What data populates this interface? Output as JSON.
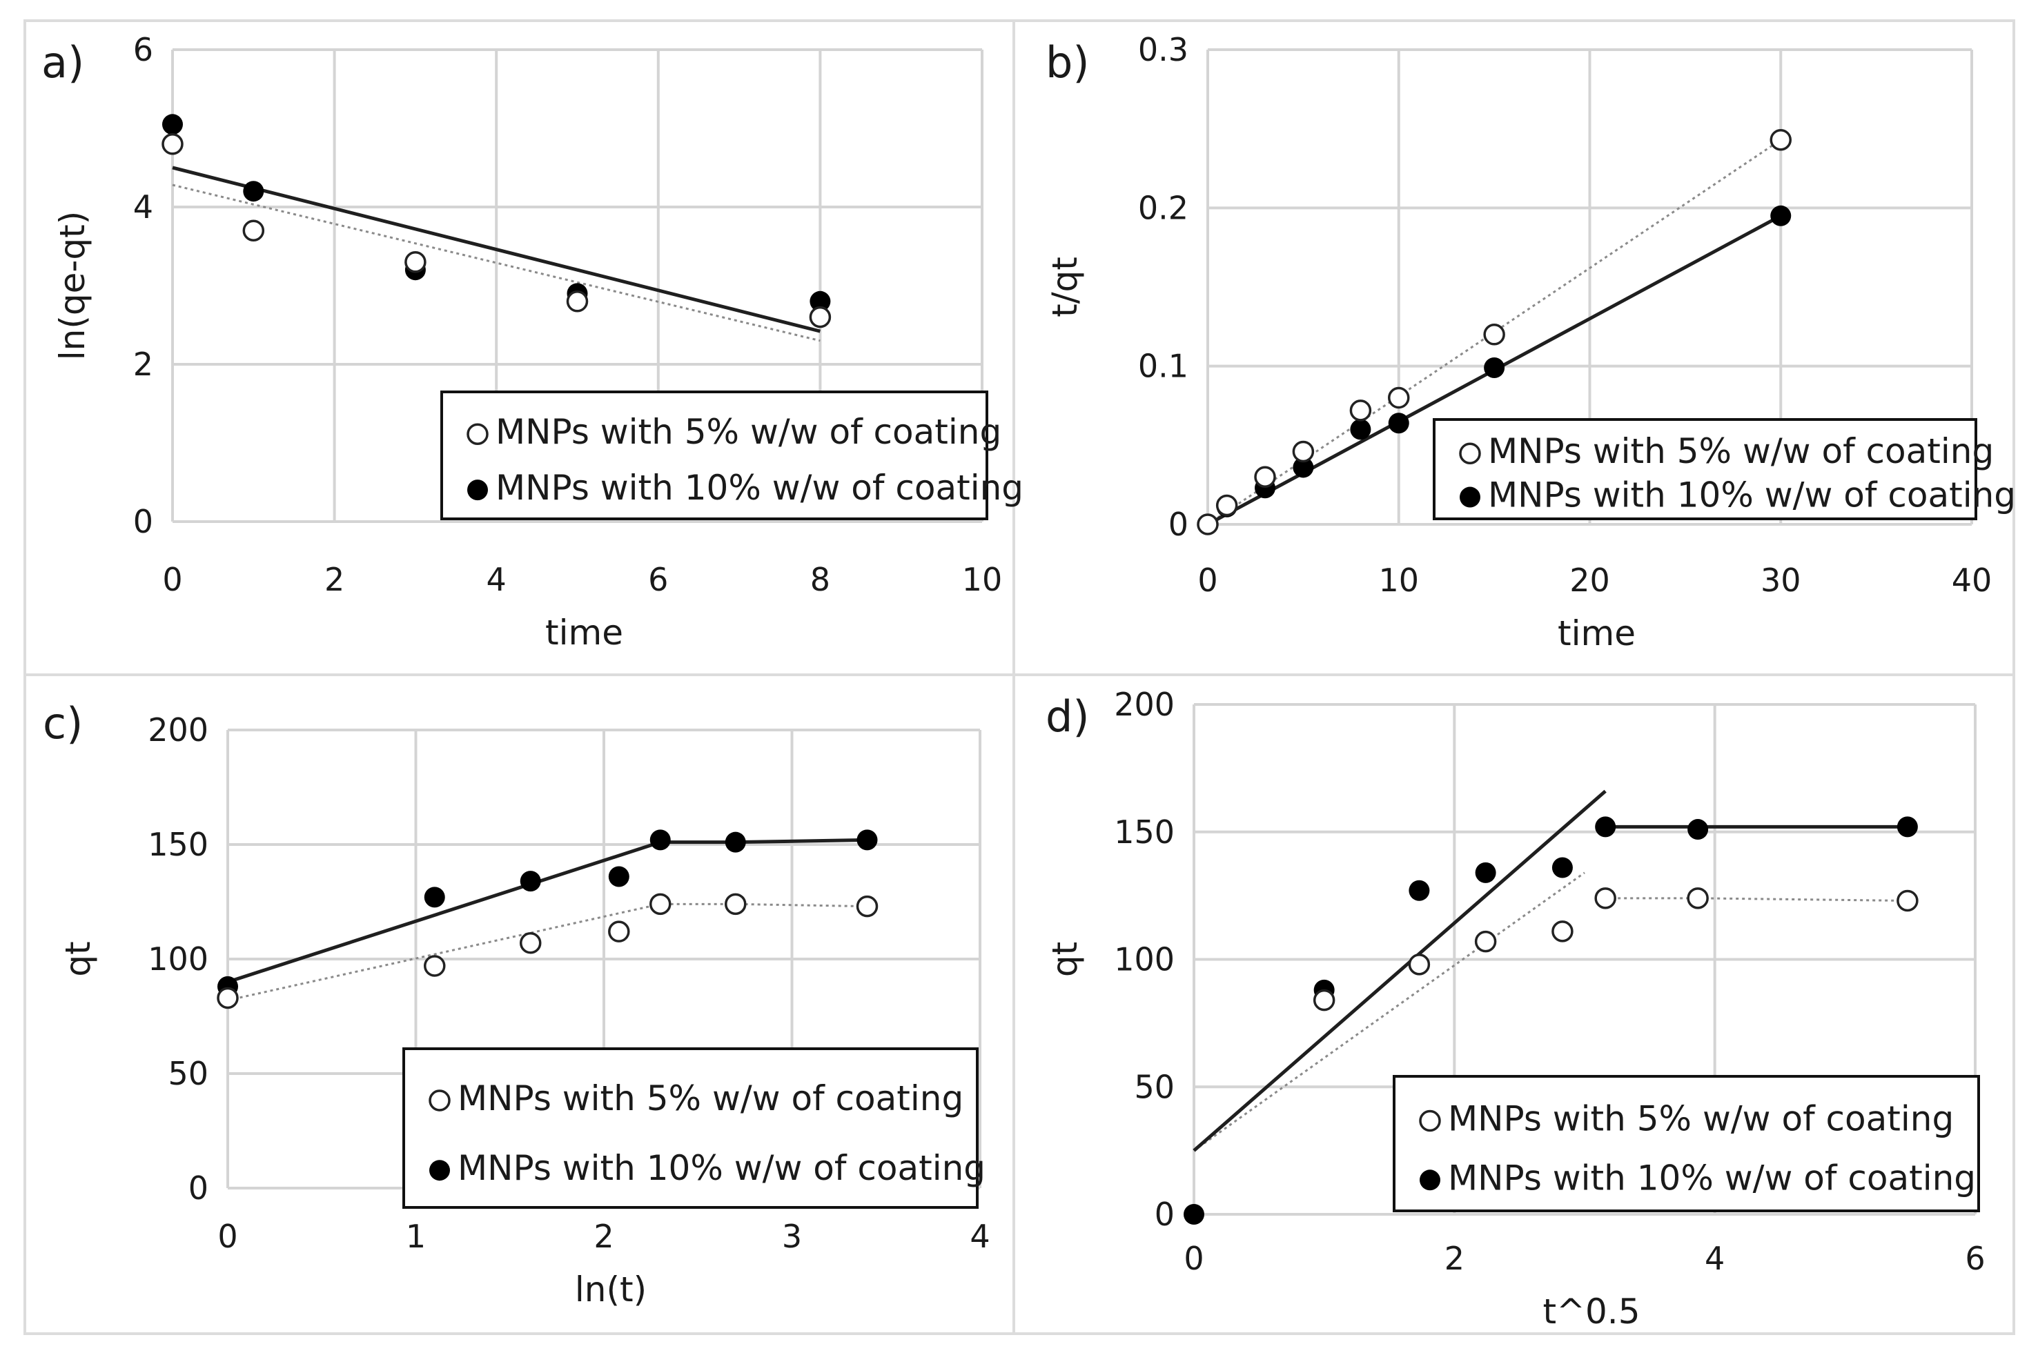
{
  "figure": {
    "legend": {
      "series1": "MNPs with 5% w/w of coating",
      "series2": "MNPs with 10% w/w of coating"
    }
  },
  "chart_data": [
    {
      "panel": "a)",
      "type": "scatter",
      "xlabel": "time",
      "ylabel": "ln(qe-qt)",
      "xlim": [
        0,
        10
      ],
      "ylim": [
        0,
        6
      ],
      "xticks": [
        0,
        2,
        4,
        6,
        8,
        10
      ],
      "yticks": [
        0,
        2,
        4,
        6
      ],
      "xtick_labels": [
        "0",
        "2",
        "4",
        "6",
        "8",
        "10"
      ],
      "ytick_labels": [
        "0",
        "2",
        "4",
        "6"
      ],
      "legend_position": "bottom-right",
      "series": [
        {
          "name": "MNPs with 5% w/w of coating",
          "marker": "open",
          "x": [
            0,
            1,
            3,
            5,
            8
          ],
          "y": [
            4.8,
            3.7,
            3.3,
            2.8,
            2.6
          ],
          "line": {
            "style": "dotted",
            "points": [
              [
                0,
                4.28
              ],
              [
                8,
                2.3
              ]
            ]
          }
        },
        {
          "name": "MNPs with 10% w/w of coating",
          "marker": "filled",
          "x": [
            0,
            1,
            3,
            5,
            8
          ],
          "y": [
            5.05,
            4.2,
            3.2,
            2.9,
            2.8
          ],
          "line": {
            "style": "solid",
            "points": [
              [
                0,
                4.5
              ],
              [
                8,
                2.42
              ]
            ]
          }
        }
      ]
    },
    {
      "panel": "b)",
      "type": "scatter",
      "xlabel": "time",
      "ylabel": "t/qt",
      "xlim": [
        0,
        40
      ],
      "ylim": [
        0,
        0.3
      ],
      "xticks": [
        0,
        10,
        20,
        30,
        40
      ],
      "yticks": [
        0,
        0.1,
        0.2,
        0.3
      ],
      "xtick_labels": [
        "0",
        "10",
        "20",
        "30",
        "40"
      ],
      "ytick_labels": [
        "0",
        "0.1",
        "0.2",
        "0.3"
      ],
      "legend_position": "bottom-right",
      "series": [
        {
          "name": "MNPs with 5% w/w of coating",
          "marker": "open",
          "x": [
            0,
            1,
            3,
            5,
            8,
            10,
            15,
            30
          ],
          "y": [
            0.0,
            0.012,
            0.03,
            0.046,
            0.072,
            0.08,
            0.12,
            0.243
          ],
          "line": {
            "style": "dotted",
            "points": [
              [
                0,
                0.0
              ],
              [
                30,
                0.243
              ]
            ]
          }
        },
        {
          "name": "MNPs with 10% w/w of coating",
          "marker": "filled",
          "x": [
            0,
            1,
            3,
            5,
            8,
            10,
            15,
            30
          ],
          "y": [
            0.0,
            0.011,
            0.023,
            0.036,
            0.06,
            0.064,
            0.099,
            0.195
          ],
          "line": {
            "style": "solid",
            "points": [
              [
                0,
                0.0
              ],
              [
                30,
                0.195
              ]
            ]
          }
        }
      ]
    },
    {
      "panel": "c)",
      "type": "scatter",
      "xlabel": "ln(t)",
      "ylabel": "qt",
      "xlim": [
        0,
        4
      ],
      "ylim": [
        0,
        200
      ],
      "xticks": [
        0,
        1,
        2,
        3,
        4
      ],
      "yticks": [
        0,
        50,
        100,
        150,
        200
      ],
      "xtick_labels": [
        "0",
        "1",
        "2",
        "3",
        "4"
      ],
      "ytick_labels": [
        "0",
        "50",
        "100",
        "150",
        "200"
      ],
      "legend_position": "bottom-right",
      "series": [
        {
          "name": "MNPs with 5% w/w of coating",
          "marker": "open",
          "x": [
            0,
            1.1,
            1.61,
            2.08,
            2.3,
            2.7,
            3.4
          ],
          "y": [
            83,
            97,
            107,
            112,
            124,
            124,
            123
          ],
          "line": {
            "style": "dotted",
            "points": [
              [
                0,
                82
              ],
              [
                2.3,
                124
              ],
              [
                2.7,
                124
              ],
              [
                3.4,
                123
              ]
            ]
          }
        },
        {
          "name": "MNPs with 10% w/w of coating",
          "marker": "filled",
          "x": [
            0,
            1.1,
            1.61,
            2.08,
            2.3,
            2.7,
            3.4
          ],
          "y": [
            88,
            127,
            134,
            136,
            152,
            151,
            152
          ],
          "line": {
            "style": "solid",
            "points": [
              [
                0,
                90
              ],
              [
                2.3,
                151
              ],
              [
                2.7,
                151
              ],
              [
                3.4,
                152
              ]
            ]
          }
        }
      ]
    },
    {
      "panel": "d)",
      "type": "scatter",
      "xlabel": "t^0.5",
      "ylabel": "qt",
      "xlim": [
        0,
        6
      ],
      "ylim": [
        0,
        200
      ],
      "xticks": [
        0,
        2,
        4,
        6
      ],
      "yticks": [
        0,
        50,
        100,
        150,
        200
      ],
      "xtick_labels": [
        "0",
        "2",
        "4",
        "6"
      ],
      "ytick_labels": [
        "0",
        "50",
        "100",
        "150",
        "200"
      ],
      "legend_position": "bottom-right",
      "series": [
        {
          "name": "MNPs with 5% w/w of coating",
          "marker": "open",
          "x": [
            1.0,
            1.73,
            2.24,
            2.83,
            3.16,
            3.87,
            5.48
          ],
          "y": [
            84,
            98,
            107,
            111,
            124,
            124,
            123
          ],
          "line": [
            {
              "style": "dotted",
              "points": [
                [
                  0,
                  25
                ],
                [
                  3.0,
                  134
                ]
              ]
            },
            {
              "style": "dotted",
              "points": [
                [
                  3.16,
                  124
                ],
                [
                  3.87,
                  124
                ],
                [
                  5.48,
                  123
                ]
              ]
            }
          ]
        },
        {
          "name": "MNPs with 10% w/w of coating",
          "marker": "filled",
          "x": [
            0,
            1.0,
            1.73,
            2.24,
            2.83,
            3.16,
            3.87,
            5.48
          ],
          "y": [
            0,
            88,
            127,
            134,
            136,
            152,
            151,
            152
          ],
          "line": [
            {
              "style": "solid",
              "points": [
                [
                  0,
                  25
                ],
                [
                  3.16,
                  166
                ]
              ]
            },
            {
              "style": "solid",
              "points": [
                [
                  3.16,
                  152
                ],
                [
                  3.87,
                  152
                ],
                [
                  5.48,
                  152
                ]
              ]
            }
          ]
        }
      ]
    }
  ]
}
